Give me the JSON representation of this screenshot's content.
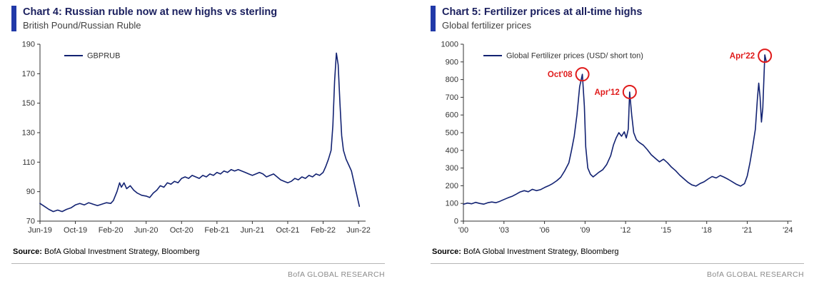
{
  "panels": [
    {
      "title": "Chart 4: Russian ruble now at new highs vs sterling",
      "subtitle": "British Pound/Russian Ruble",
      "source_label": "Source:",
      "source_text": "BofA Global Investment Strategy, Bloomberg",
      "footer": "BofA GLOBAL RESEARCH"
    },
    {
      "title": "Chart 5: Fertilizer prices at all-time highs",
      "subtitle": "Global fertilizer prices",
      "source_label": "Source:",
      "source_text": "BofA Global Investment Strategy, Bloomberg",
      "footer": "BofA GLOBAL RESEARCH"
    }
  ],
  "colors": {
    "line_navy": "#122272",
    "annotation_red": "#e01b1b",
    "axis": "#333333",
    "tick_label": "#333333",
    "title_navy": "#1a1f5e",
    "title_bar_blue": "#2139a8"
  },
  "chart_data": [
    {
      "type": "line",
      "title": "Chart 4: Russian ruble now at new highs vs sterling",
      "subtitle": "British Pound/Russian Ruble",
      "xlabel": "",
      "ylabel": "",
      "xlim": [
        0,
        36.8
      ],
      "ylim": [
        70,
        190
      ],
      "grid": false,
      "legend": {
        "label": "GBPRUB",
        "position": "top-left-inside"
      },
      "xticks": [
        {
          "v": 0,
          "label": "Jun-19"
        },
        {
          "v": 4,
          "label": "Oct-19"
        },
        {
          "v": 8,
          "label": "Feb-20"
        },
        {
          "v": 12,
          "label": "Jun-20"
        },
        {
          "v": 16,
          "label": "Oct-20"
        },
        {
          "v": 20,
          "label": "Feb-21"
        },
        {
          "v": 24,
          "label": "Jun-21"
        },
        {
          "v": 28,
          "label": "Oct-21"
        },
        {
          "v": 32,
          "label": "Feb-22"
        },
        {
          "v": 36,
          "label": "Jun-22"
        }
      ],
      "yticks": [
        70,
        90,
        110,
        130,
        150,
        170,
        190
      ],
      "annotations": [],
      "series": [
        {
          "name": "GBPRUB",
          "points": [
            [
              0,
              82
            ],
            [
              0.5,
              80
            ],
            [
              1,
              78
            ],
            [
              1.5,
              76.5
            ],
            [
              2,
              77.5
            ],
            [
              2.5,
              76.5
            ],
            [
              3,
              78
            ],
            [
              3.5,
              79
            ],
            [
              4,
              81
            ],
            [
              4.5,
              82
            ],
            [
              5,
              81
            ],
            [
              5.5,
              82.5
            ],
            [
              6,
              81.5
            ],
            [
              6.5,
              80.5
            ],
            [
              7,
              81.5
            ],
            [
              7.5,
              82.5
            ],
            [
              8,
              82
            ],
            [
              8.3,
              84
            ],
            [
              8.7,
              90
            ],
            [
              9,
              96
            ],
            [
              9.2,
              93
            ],
            [
              9.5,
              96
            ],
            [
              9.8,
              92
            ],
            [
              10.2,
              94
            ],
            [
              10.6,
              91
            ],
            [
              11,
              89
            ],
            [
              11.5,
              87.5
            ],
            [
              12,
              87
            ],
            [
              12.4,
              86
            ],
            [
              12.8,
              89
            ],
            [
              13.2,
              91
            ],
            [
              13.6,
              94
            ],
            [
              14,
              93
            ],
            [
              14.4,
              96
            ],
            [
              14.8,
              95
            ],
            [
              15.2,
              97
            ],
            [
              15.6,
              96
            ],
            [
              16,
              99
            ],
            [
              16.4,
              100
            ],
            [
              16.8,
              99
            ],
            [
              17.2,
              101
            ],
            [
              17.6,
              100
            ],
            [
              18,
              99
            ],
            [
              18.4,
              101
            ],
            [
              18.8,
              100
            ],
            [
              19.2,
              102
            ],
            [
              19.6,
              101
            ],
            [
              20,
              103
            ],
            [
              20.4,
              102
            ],
            [
              20.8,
              104
            ],
            [
              21.2,
              103
            ],
            [
              21.6,
              105
            ],
            [
              22,
              104
            ],
            [
              22.4,
              105
            ],
            [
              22.8,
              104
            ],
            [
              23.2,
              103
            ],
            [
              23.6,
              102
            ],
            [
              24,
              101
            ],
            [
              24.4,
              102
            ],
            [
              24.8,
              103
            ],
            [
              25.2,
              102
            ],
            [
              25.6,
              100
            ],
            [
              26,
              101
            ],
            [
              26.4,
              102
            ],
            [
              26.8,
              100
            ],
            [
              27.2,
              98
            ],
            [
              27.6,
              97
            ],
            [
              28,
              96
            ],
            [
              28.4,
              97
            ],
            [
              28.8,
              99
            ],
            [
              29.2,
              98
            ],
            [
              29.6,
              100
            ],
            [
              30,
              99
            ],
            [
              30.4,
              101
            ],
            [
              30.8,
              100
            ],
            [
              31.2,
              102
            ],
            [
              31.6,
              101
            ],
            [
              32,
              103
            ],
            [
              32.3,
              107
            ],
            [
              32.6,
              112
            ],
            [
              32.9,
              118
            ],
            [
              33.1,
              135
            ],
            [
              33.3,
              165
            ],
            [
              33.5,
              184
            ],
            [
              33.7,
              176
            ],
            [
              33.9,
              150
            ],
            [
              34.1,
              128
            ],
            [
              34.3,
              118
            ],
            [
              34.6,
              112
            ],
            [
              34.9,
              108
            ],
            [
              35.2,
              104
            ],
            [
              35.5,
              96
            ],
            [
              35.8,
              88
            ],
            [
              36.1,
              80
            ]
          ]
        }
      ]
    },
    {
      "type": "line",
      "title": "Chart 5: Fertilizer prices at all-time highs",
      "subtitle": "Global fertilizer prices",
      "xlabel": "",
      "ylabel": "",
      "xlim": [
        2000,
        2024.3
      ],
      "ylim": [
        0,
        1000
      ],
      "grid": false,
      "legend": {
        "label": "Global Fertilizer prices (USD/ short ton)",
        "position": "top-left-inside"
      },
      "xticks": [
        {
          "v": 2000,
          "label": "'00"
        },
        {
          "v": 2003,
          "label": "'03"
        },
        {
          "v": 2006,
          "label": "'06"
        },
        {
          "v": 2009,
          "label": "'09"
        },
        {
          "v": 2012,
          "label": "'12"
        },
        {
          "v": 2015,
          "label": "'15"
        },
        {
          "v": 2018,
          "label": "'18"
        },
        {
          "v": 2021,
          "label": "'21"
        },
        {
          "v": 2024,
          "label": "'24"
        }
      ],
      "yticks": [
        0,
        100,
        200,
        300,
        400,
        500,
        600,
        700,
        800,
        900,
        1000
      ],
      "annotations": [
        {
          "x": 2008.8,
          "y": 830,
          "label": "Oct'08"
        },
        {
          "x": 2012.3,
          "y": 730,
          "label": "Apr'12"
        },
        {
          "x": 2022.3,
          "y": 935,
          "label": "Apr'22"
        }
      ],
      "series": [
        {
          "name": "Global Fertilizer prices (USD/ short ton)",
          "points": [
            [
              2000,
              95
            ],
            [
              2000.3,
              102
            ],
            [
              2000.6,
              98
            ],
            [
              2000.9,
              106
            ],
            [
              2001.2,
              100
            ],
            [
              2001.5,
              96
            ],
            [
              2001.8,
              104
            ],
            [
              2002.1,
              108
            ],
            [
              2002.4,
              104
            ],
            [
              2002.7,
              112
            ],
            [
              2003,
              122
            ],
            [
              2003.3,
              132
            ],
            [
              2003.6,
              140
            ],
            [
              2003.9,
              152
            ],
            [
              2004.2,
              165
            ],
            [
              2004.5,
              172
            ],
            [
              2004.8,
              166
            ],
            [
              2005.1,
              180
            ],
            [
              2005.4,
              172
            ],
            [
              2005.7,
              178
            ],
            [
              2006,
              190
            ],
            [
              2006.3,
              200
            ],
            [
              2006.6,
              212
            ],
            [
              2006.9,
              228
            ],
            [
              2007.2,
              248
            ],
            [
              2007.5,
              285
            ],
            [
              2007.8,
              330
            ],
            [
              2008,
              400
            ],
            [
              2008.2,
              480
            ],
            [
              2008.4,
              600
            ],
            [
              2008.6,
              760
            ],
            [
              2008.8,
              830
            ],
            [
              2008.95,
              650
            ],
            [
              2009.05,
              420
            ],
            [
              2009.2,
              300
            ],
            [
              2009.4,
              265
            ],
            [
              2009.6,
              250
            ],
            [
              2009.8,
              262
            ],
            [
              2010,
              275
            ],
            [
              2010.3,
              290
            ],
            [
              2010.6,
              320
            ],
            [
              2010.9,
              370
            ],
            [
              2011.1,
              430
            ],
            [
              2011.3,
              470
            ],
            [
              2011.5,
              500
            ],
            [
              2011.7,
              480
            ],
            [
              2011.9,
              505
            ],
            [
              2012.05,
              470
            ],
            [
              2012.2,
              520
            ],
            [
              2012.3,
              730
            ],
            [
              2012.45,
              600
            ],
            [
              2012.6,
              500
            ],
            [
              2012.8,
              460
            ],
            [
              2013,
              445
            ],
            [
              2013.3,
              430
            ],
            [
              2013.6,
              405
            ],
            [
              2013.9,
              375
            ],
            [
              2014.2,
              355
            ],
            [
              2014.5,
              335
            ],
            [
              2014.8,
              350
            ],
            [
              2015.1,
              330
            ],
            [
              2015.4,
              305
            ],
            [
              2015.7,
              285
            ],
            [
              2016,
              260
            ],
            [
              2016.3,
              240
            ],
            [
              2016.6,
              220
            ],
            [
              2016.9,
              205
            ],
            [
              2017.2,
              198
            ],
            [
              2017.5,
              212
            ],
            [
              2017.8,
              222
            ],
            [
              2018.1,
              238
            ],
            [
              2018.4,
              252
            ],
            [
              2018.7,
              244
            ],
            [
              2019,
              258
            ],
            [
              2019.3,
              248
            ],
            [
              2019.6,
              236
            ],
            [
              2019.9,
              222
            ],
            [
              2020.2,
              208
            ],
            [
              2020.5,
              198
            ],
            [
              2020.8,
              212
            ],
            [
              2021,
              255
            ],
            [
              2021.2,
              330
            ],
            [
              2021.4,
              420
            ],
            [
              2021.6,
              520
            ],
            [
              2021.75,
              690
            ],
            [
              2021.85,
              780
            ],
            [
              2021.95,
              700
            ],
            [
              2022.05,
              560
            ],
            [
              2022.15,
              640
            ],
            [
              2022.3,
              940
            ],
            [
              2022.4,
              905
            ]
          ]
        }
      ]
    }
  ]
}
